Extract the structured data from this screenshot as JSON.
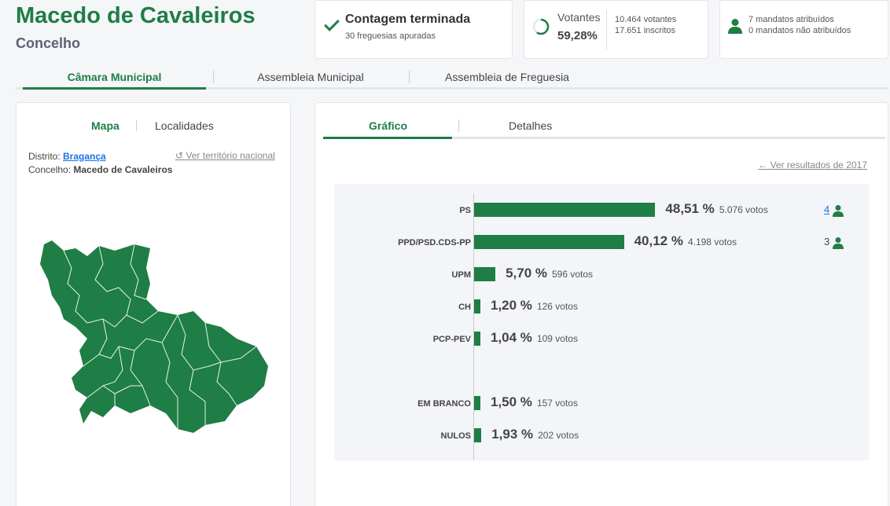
{
  "header": {
    "title": "Macedo de Cavaleiros",
    "subtitle": "Concelho"
  },
  "status_card": {
    "title": "Contagem terminada",
    "subtitle": "30 freguesias apuradas",
    "icon": "check-icon"
  },
  "voters_card": {
    "label": "Votantes",
    "percent": "59,28%",
    "voters": "10.464 votantes",
    "registered": "17.651 inscritos",
    "turnout_fraction": 0.5928
  },
  "mandates_card": {
    "assigned": "7 mandatos atribuídos",
    "unassigned": "0 mandatos não atribuídos",
    "icon": "person-icon"
  },
  "main_tabs": [
    {
      "label": "Câmara Municipal",
      "active": true
    },
    {
      "label": "Assembleia Municipal",
      "active": false
    },
    {
      "label": "Assembleia de Freguesia",
      "active": false
    }
  ],
  "left_panel": {
    "tabs": [
      {
        "label": "Mapa",
        "active": true
      },
      {
        "label": "Localidades",
        "active": false
      }
    ],
    "district_label": "Distrito:",
    "district_value": "Bragança",
    "municipality_label": "Concelho:",
    "municipality_value": "Macedo de Cavaleiros",
    "national_link": "Ver território nacional"
  },
  "right_panel": {
    "tabs": [
      {
        "label": "Gráfico",
        "active": true
      },
      {
        "label": "Detalhes",
        "active": false
      }
    ],
    "previous_link": "Ver resultados de 2017"
  },
  "colors": {
    "accent": "#1e7e45",
    "link": "#1a73e8"
  },
  "chart_data": {
    "type": "bar",
    "orientation": "horizontal",
    "categories": [
      "PS",
      "PPD/PSD.CDS-PP",
      "UPM",
      "CH",
      "PCP-PEV",
      "EM BRANCO",
      "NULOS"
    ],
    "values": [
      48.51,
      40.12,
      5.7,
      1.2,
      1.04,
      1.5,
      1.93
    ],
    "value_labels": [
      "48,51 %",
      "40,12 %",
      "5,70 %",
      "1,20 %",
      "1,04 %",
      "1,50 %",
      "1,93 %"
    ],
    "votes": [
      "5.076 votos",
      "4.198 votos",
      "596 votos",
      "126 votos",
      "109 votos",
      "157 votos",
      "202 votos"
    ],
    "mandates": [
      "4",
      "3",
      "",
      "",
      "",
      "",
      ""
    ],
    "unit": "%",
    "xlim": [
      0,
      100
    ]
  }
}
